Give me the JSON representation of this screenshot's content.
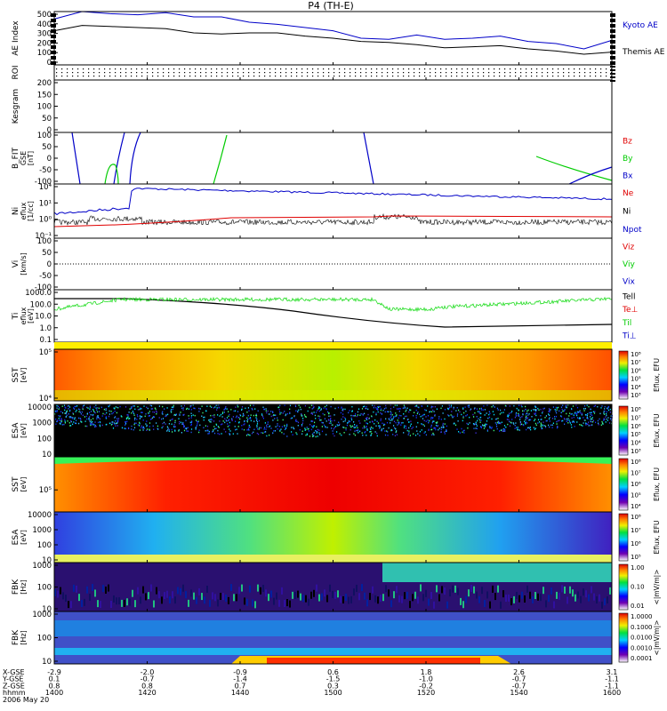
{
  "title": "P4 (TH-E)",
  "colors": {
    "blue": "#0000c8",
    "red": "#e00000",
    "green": "#00cc00",
    "black": "#000000"
  },
  "chart_data": {
    "type": "line",
    "title": "P4 (TH-E)",
    "x_range": [
      "14:00",
      "16:00"
    ],
    "panels": [
      {
        "key": "ae",
        "ylabel": "AE Index",
        "ylim": [
          0,
          500
        ],
        "yticks": [
          "500",
          "400",
          "300",
          "200",
          "100",
          "0"
        ],
        "legend": [
          {
            "label": "Kyoto AE",
            "color": "#0000c8"
          },
          {
            "label": "Themis AE",
            "color": "#000000"
          }
        ],
        "series": [
          {
            "name": "Kyoto AE",
            "color": "#0000c8",
            "x": [
              0,
              0.05,
              0.1,
              0.15,
              0.2,
              0.25,
              0.3,
              0.35,
              0.4,
              0.45,
              0.5,
              0.55,
              0.6,
              0.65,
              0.7,
              0.75,
              0.8,
              0.85,
              0.9,
              0.95,
              1
            ],
            "values": [
              430,
              500,
              480,
              470,
              490,
              450,
              450,
              400,
              380,
              350,
              320,
              250,
              240,
              280,
              240,
              250,
              270,
              220,
              200,
              150,
              230
            ]
          },
          {
            "name": "Themis AE",
            "color": "#000000",
            "x": [
              0,
              0.05,
              0.1,
              0.15,
              0.2,
              0.25,
              0.3,
              0.35,
              0.4,
              0.45,
              0.5,
              0.55,
              0.6,
              0.65,
              0.7,
              0.75,
              0.8,
              0.85,
              0.9,
              0.95,
              1
            ],
            "values": [
              320,
              370,
              360,
              350,
              340,
              300,
              290,
              300,
              300,
              270,
              250,
              220,
              210,
              190,
              160,
              170,
              180,
              150,
              130,
              100,
              120
            ]
          }
        ]
      },
      {
        "key": "roi",
        "ylabel": "ROI",
        "yticks": []
      },
      {
        "key": "kesgram",
        "ylabel": "Kesgram",
        "yticks": [
          "200",
          "150",
          "100",
          "50",
          "0"
        ]
      },
      {
        "key": "bfit",
        "ylabel": "B_FIT",
        "unit1": "GSE",
        "unit2": "[nT]",
        "ylim": [
          -100,
          100
        ],
        "yticks": [
          "100",
          "50",
          "0",
          "-50",
          "-100"
        ],
        "legend": [
          {
            "label": "Bz",
            "color": "#e00000"
          },
          {
            "label": "By",
            "color": "#00cc00"
          },
          {
            "label": "Bx",
            "color": "#0000c8"
          }
        ]
      },
      {
        "key": "ni",
        "ylabel": "Ni",
        "unit1": "eflux",
        "unit2": "[1/cc]",
        "yticks": [
          "10⁴",
          "10¹",
          "10⁰",
          "10⁻¹"
        ],
        "legend": [
          {
            "label": "Ne",
            "color": "#e00000"
          },
          {
            "label": "Ni",
            "color": "#000000"
          },
          {
            "label": "Npot",
            "color": "#0000c8"
          }
        ]
      },
      {
        "key": "vi",
        "ylabel": "Vi",
        "unit1": "[km/s]",
        "ylim": [
          -100,
          100
        ],
        "yticks": [
          "100",
          "50",
          "0",
          "-50",
          "-100"
        ],
        "legend": [
          {
            "label": "Viz",
            "color": "#e00000"
          },
          {
            "label": "Viy",
            "color": "#00cc00"
          },
          {
            "label": "Vix",
            "color": "#0000c8"
          }
        ]
      },
      {
        "key": "ti",
        "ylabel": "Ti",
        "unit1": "eflux",
        "unit2": "[eV]",
        "yticks": [
          "1000.0",
          "100.0",
          "10.0",
          "1.0",
          "0.1"
        ],
        "legend": [
          {
            "label": "Tell",
            "color": "#000000"
          },
          {
            "label": "Te⊥",
            "color": "#e00000"
          },
          {
            "label": "Til",
            "color": "#00cc00"
          },
          {
            "label": "Ti⊥",
            "color": "#0000c8"
          }
        ]
      },
      {
        "key": "sst_i",
        "ylabel": "SST",
        "unit1": "[eV]",
        "yticks": [
          "10⁵",
          "10⁴"
        ],
        "cbar": [
          "10⁸",
          "10⁷",
          "10⁶",
          "10⁵",
          "10⁴",
          "10³"
        ],
        "clabel": "Eflux, EFU"
      },
      {
        "key": "esa_i",
        "ylabel": "ESA",
        "unit1": "[eV]",
        "yticks": [
          "10000",
          "1000",
          "100",
          "10"
        ],
        "cbar": [
          "10⁸",
          "10⁷",
          "10⁶",
          "10⁵",
          "10⁴",
          "10³"
        ],
        "clabel": "Eflux, EFU"
      },
      {
        "key": "sst_e",
        "ylabel": "SST",
        "unit1": "[eV]",
        "yticks": [
          "10⁵"
        ],
        "cbar": [
          "10⁸",
          "10⁷",
          "10⁶",
          "10⁵",
          "10⁴"
        ],
        "clabel": "Eflux, EFU"
      },
      {
        "key": "esa_e",
        "ylabel": "ESA",
        "unit1": "[eV]",
        "yticks": [
          "10000",
          "1000",
          "100",
          "10"
        ],
        "cbar": [
          "10⁸",
          "10⁷",
          "10⁶",
          "10⁵"
        ],
        "clabel": "Eflux, EFU"
      },
      {
        "key": "fbk1",
        "ylabel": "FBK",
        "unit1": "[Hz]",
        "yticks": [
          "1000",
          "100",
          "10"
        ],
        "cbar": [
          "1.00",
          "0.10",
          "0.01"
        ],
        "clabel": "<|mV/m|>"
      },
      {
        "key": "fbk2",
        "ylabel": "FBK",
        "unit1": "[Hz]",
        "yticks": [
          "1000",
          "100",
          "10"
        ],
        "cbar": [
          "1.0000",
          "0.1000",
          "0.0100",
          "0.0010",
          "0.0001"
        ],
        "clabel": "<|mV/m|>"
      }
    ],
    "xaxis": {
      "row_labels": [
        "X-GSE",
        "Y-GSE",
        "Z-GSE",
        "hhmm",
        "2006 May 20"
      ],
      "columns": [
        [
          "-2.9",
          "0.1",
          "0.8",
          "1400"
        ],
        [
          "-2.0",
          "-0.7",
          "0.8",
          "1420"
        ],
        [
          "-0.9",
          "-1.4",
          "0.7",
          "1440"
        ],
        [
          "0.6",
          "-1.5",
          "0.3",
          "1500"
        ],
        [
          "1.8",
          "-1.0",
          "-0.2",
          "1520"
        ],
        [
          "2.6",
          "-0.7",
          "-0.7",
          "1540"
        ],
        [
          "3.1",
          "-1.1",
          "-1.1",
          "1600"
        ]
      ]
    }
  }
}
